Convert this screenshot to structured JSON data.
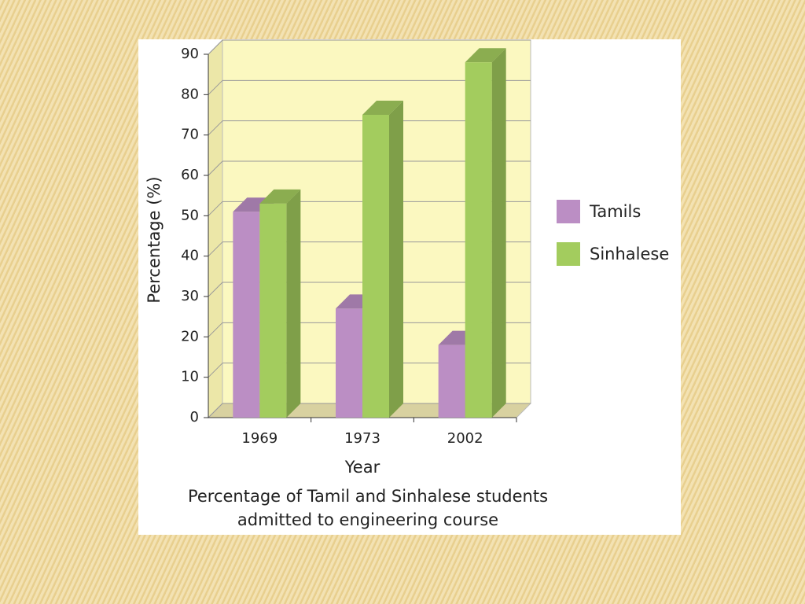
{
  "chart_data": {
    "type": "bar3d",
    "title": [
      "Percentage of Tamil and Sinhalese students",
      "admitted to engineering course"
    ],
    "x_label": "Year",
    "y_label": "Percentage (%)",
    "categories": [
      "1969",
      "1973",
      "2002"
    ],
    "series": [
      {
        "name": "Tamils",
        "color": "#bb8ec4",
        "values": [
          51,
          27,
          18
        ]
      },
      {
        "name": "Sinhalese",
        "color": "#a3cc5e",
        "values": [
          53,
          75,
          88
        ]
      }
    ],
    "ylim": [
      0,
      90
    ],
    "yticks": [
      0,
      10,
      20,
      30,
      40,
      50,
      60,
      70,
      80,
      90
    ],
    "grid": true
  }
}
